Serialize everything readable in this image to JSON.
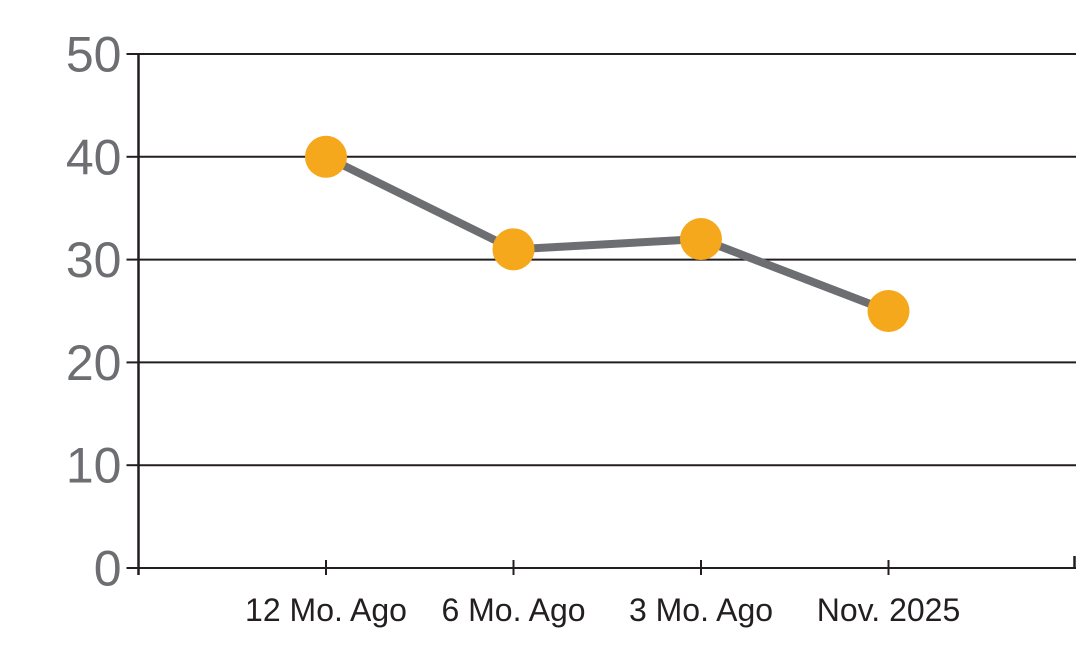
{
  "chart_data": {
    "type": "line",
    "categories": [
      "12 Mo. Ago",
      "6 Mo. Ago",
      "3 Mo. Ago",
      "Nov. 2025"
    ],
    "values": [
      40,
      31,
      32,
      25
    ],
    "title": "",
    "xlabel": "",
    "ylabel": "",
    "ylim": [
      0,
      50
    ],
    "y_ticks": [
      0,
      10,
      20,
      30,
      40,
      50
    ],
    "grid": "horizontal-only",
    "legend": "none",
    "colors": {
      "marker": "#F5A81C",
      "line": "#6D6E71",
      "axis": "#231F20",
      "gridline": "#231F20",
      "y_tick_label": "#6D6E71",
      "x_tick_label": "#231F20",
      "background": "#FFFFFF"
    }
  }
}
